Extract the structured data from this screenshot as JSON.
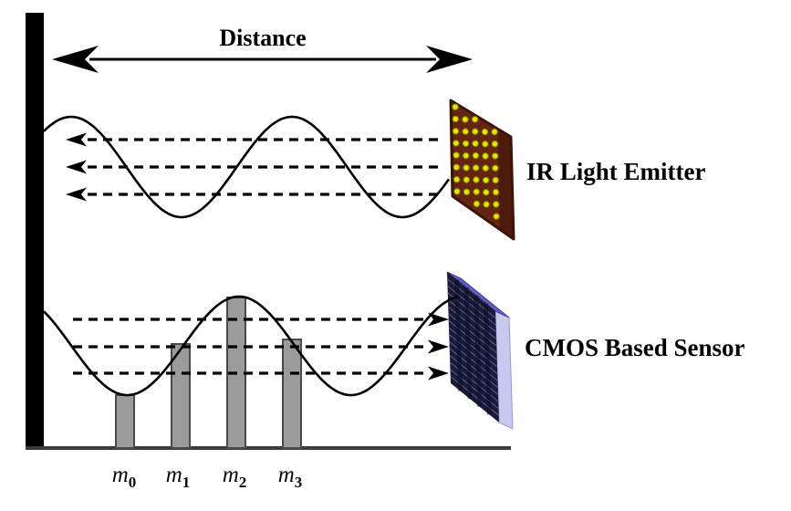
{
  "diagram": {
    "distance_label": "Distance",
    "emitter_label": "IR Light Emitter",
    "sensor_label": "CMOS Based Sensor"
  },
  "samples": [
    {
      "base": "m",
      "sub": "0"
    },
    {
      "base": "m",
      "sub": "1"
    },
    {
      "base": "m",
      "sub": "2"
    },
    {
      "base": "m",
      "sub": "3"
    }
  ],
  "colors": {
    "background": "#ffffff",
    "line": "#000000",
    "wall": "#000000",
    "baseline": "#3c3c3c",
    "bar_fill": "#9b9b9b",
    "bar_stroke": "#4a4a4a",
    "emitter_body": "#63250f",
    "emitter_edge": "#3d1408",
    "led_fill": "#e4e400",
    "led_stroke": "#8a8a00",
    "sensor_front": "#1b1b38",
    "sensor_ridge": "#50508a",
    "sensor_band": "#0a0a22",
    "sensor_top": "#5d5dbb",
    "sensor_top_edge": "#4343a0",
    "sensor_side": "#c9c9ef",
    "sensor_side_edge": "#9898cf"
  }
}
